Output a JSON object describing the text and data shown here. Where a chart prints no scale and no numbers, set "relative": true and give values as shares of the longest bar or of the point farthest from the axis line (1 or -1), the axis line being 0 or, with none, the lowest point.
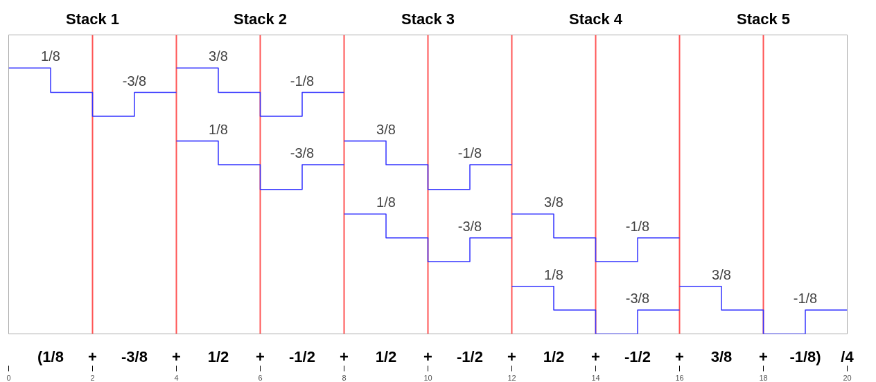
{
  "chart_data": {
    "type": "step",
    "relative": true,
    "grid": false,
    "xlim": [
      0,
      20
    ],
    "xticks": [
      0,
      2,
      4,
      6,
      8,
      10,
      12,
      14,
      16,
      18,
      20
    ],
    "series": [
      {
        "color": "#3333ff",
        "x": [
          0,
          1,
          2,
          3,
          4
        ],
        "values": [
          1,
          0.908,
          0.818,
          0.908,
          0.908
        ]
      },
      {
        "color": "#3333ff",
        "x": [
          4,
          5,
          6,
          7,
          8
        ],
        "values": [
          1,
          0.908,
          0.818,
          0.908,
          0.908
        ]
      },
      {
        "color": "#3333ff",
        "x": [
          4,
          5,
          6,
          7,
          8
        ],
        "values": [
          0.725,
          0.636,
          0.543,
          0.636,
          0.636
        ]
      },
      {
        "color": "#3333ff",
        "x": [
          8,
          9,
          10,
          11,
          12
        ],
        "values": [
          0.725,
          0.636,
          0.543,
          0.636,
          0.636
        ]
      },
      {
        "color": "#3333ff",
        "x": [
          8,
          9,
          10,
          11,
          12
        ],
        "values": [
          0.451,
          0.361,
          0.272,
          0.361,
          0.361
        ]
      },
      {
        "color": "#3333ff",
        "x": [
          12,
          13,
          14,
          15,
          16
        ],
        "values": [
          0.451,
          0.361,
          0.272,
          0.361,
          0.361
        ]
      },
      {
        "color": "#3333ff",
        "x": [
          12,
          13,
          14,
          15,
          16
        ],
        "values": [
          0.179,
          0.09,
          0,
          0.09,
          0.09
        ]
      },
      {
        "color": "#3333ff",
        "x": [
          16,
          17,
          18,
          19,
          20
        ],
        "values": [
          0.179,
          0.09,
          0,
          0.09,
          0.09
        ]
      }
    ],
    "ref_lines": [
      {
        "axis": "x",
        "value": 2,
        "color": "#ff5555"
      },
      {
        "axis": "x",
        "value": 4,
        "color": "#ff5555"
      },
      {
        "axis": "x",
        "value": 6,
        "color": "#ff5555"
      },
      {
        "axis": "x",
        "value": 8,
        "color": "#ff5555"
      },
      {
        "axis": "x",
        "value": 10,
        "color": "#ff5555"
      },
      {
        "axis": "x",
        "value": 12,
        "color": "#ff5555"
      },
      {
        "axis": "x",
        "value": 14,
        "color": "#ff5555"
      },
      {
        "axis": "x",
        "value": 16,
        "color": "#ff5555"
      },
      {
        "axis": "x",
        "value": 18,
        "color": "#ff5555"
      }
    ],
    "annotations": [
      "Stack 1",
      "Stack 2",
      "Stack 3",
      "Stack 4",
      "Stack 5",
      {
        "text": "1/8",
        "x": 1,
        "y": 1
      },
      {
        "text": "-3/8",
        "x": 3,
        "y": 0.908
      },
      {
        "text": "3/8",
        "x": 5,
        "y": 1
      },
      {
        "text": "-1/8",
        "x": 7,
        "y": 0.908
      },
      {
        "text": "1/8",
        "x": 5,
        "y": 0.725
      },
      {
        "text": "-3/8",
        "x": 7,
        "y": 0.636
      },
      {
        "text": "3/8",
        "x": 9,
        "y": 0.725
      },
      {
        "text": "-1/8",
        "x": 11,
        "y": 0.636
      },
      {
        "text": "1/8",
        "x": 9,
        "y": 0.451
      },
      {
        "text": "-3/8",
        "x": 11,
        "y": 0.361
      },
      {
        "text": "3/8",
        "x": 13,
        "y": 0.451
      },
      {
        "text": "-1/8",
        "x": 15,
        "y": 0.361
      },
      {
        "text": "1/8",
        "x": 13,
        "y": 0.179
      },
      {
        "text": "-3/8",
        "x": 15,
        "y": 0.09
      },
      {
        "text": "3/8",
        "x": 17,
        "y": 0.179
      },
      {
        "text": "-1/8",
        "x": 19,
        "y": 0.09
      },
      "(1/8 + -3/8 + 1/2 + -1/2 + 1/2 + -1/2 + 1/2 + -1/2 + 3/8 + -1/8) /4"
    ]
  }
}
